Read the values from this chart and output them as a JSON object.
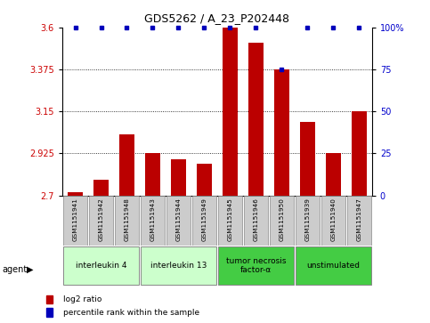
{
  "title": "GDS5262 / A_23_P202448",
  "samples": [
    "GSM1151941",
    "GSM1151942",
    "GSM1151948",
    "GSM1151943",
    "GSM1151944",
    "GSM1151949",
    "GSM1151945",
    "GSM1151946",
    "GSM1151950",
    "GSM1151939",
    "GSM1151940",
    "GSM1151947"
  ],
  "log2_values": [
    2.715,
    2.785,
    3.025,
    2.925,
    2.895,
    2.87,
    3.6,
    3.52,
    3.375,
    3.095,
    2.925,
    3.15
  ],
  "percentile_values": [
    100,
    100,
    100,
    100,
    100,
    100,
    100,
    100,
    75,
    100,
    100,
    100
  ],
  "ylim_left": [
    2.7,
    3.6
  ],
  "yticks_left": [
    2.7,
    2.925,
    3.15,
    3.375,
    3.6
  ],
  "ytick_labels_left": [
    "2.7",
    "2.925",
    "3.15",
    "3.375",
    "3.6"
  ],
  "yticks_right": [
    0,
    25,
    50,
    75,
    100
  ],
  "ytick_labels_right": [
    "0",
    "25",
    "50",
    "75",
    "100%"
  ],
  "bar_color": "#bb0000",
  "dot_color": "#0000bb",
  "agent_groups": [
    {
      "label": "interleukin 4",
      "start": 0,
      "end": 3,
      "color": "#ccffcc"
    },
    {
      "label": "interleukin 13",
      "start": 3,
      "end": 6,
      "color": "#ccffcc"
    },
    {
      "label": "tumor necrosis\nfactor-α",
      "start": 6,
      "end": 9,
      "color": "#44cc44"
    },
    {
      "label": "unstimulated",
      "start": 9,
      "end": 12,
      "color": "#44cc44"
    }
  ],
  "grid_color": "#000000",
  "tick_label_color_left": "#cc0000",
  "tick_label_color_right": "#0000cc",
  "background_color": "#ffffff",
  "bar_width": 0.6,
  "sample_box_color": "#cccccc",
  "figwidth": 4.83,
  "figheight": 3.63,
  "dpi": 100
}
